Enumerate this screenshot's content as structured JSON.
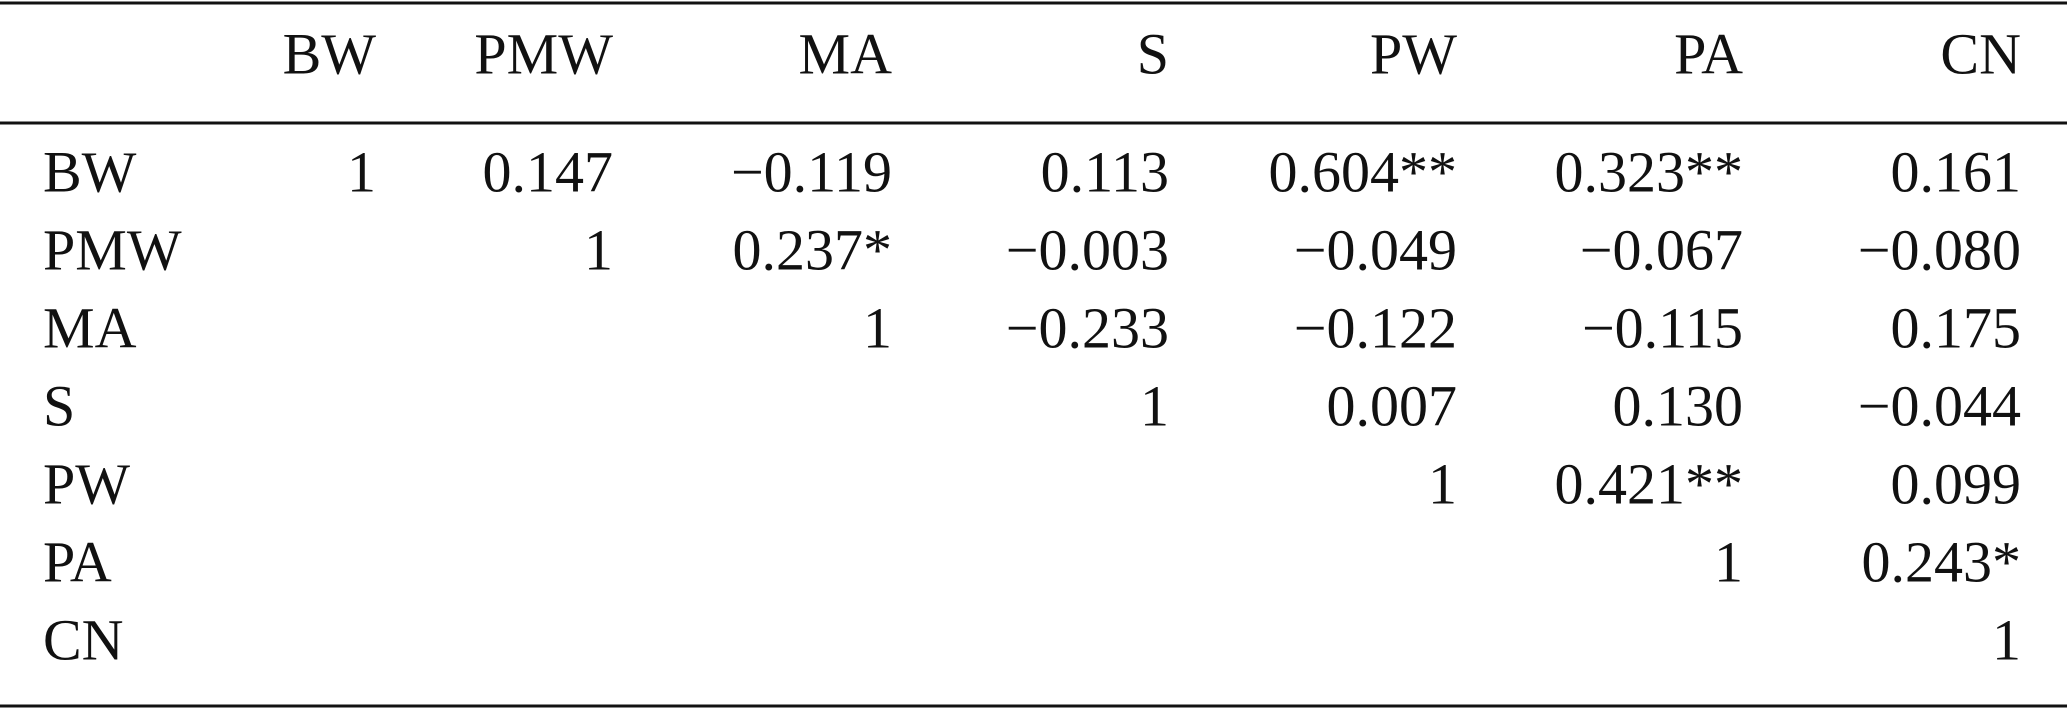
{
  "table": {
    "header": [
      "BW",
      "PMW",
      "MA",
      "S",
      "PW",
      "PA",
      "CN"
    ],
    "rows": [
      {
        "label": "BW",
        "cells": [
          "1",
          "0.147",
          "−0.119",
          "0.113",
          "0.604**",
          "0.323**",
          "0.161"
        ]
      },
      {
        "label": "PMW",
        "cells": [
          null,
          "1",
          "0.237*",
          "−0.003",
          "−0.049",
          "−0.067",
          "−0.080"
        ]
      },
      {
        "label": "MA",
        "cells": [
          null,
          null,
          "1",
          "−0.233",
          "−0.122",
          "−0.115",
          "0.175"
        ]
      },
      {
        "label": "S",
        "cells": [
          null,
          null,
          null,
          "1",
          "0.007",
          "0.130",
          "−0.044"
        ]
      },
      {
        "label": "PW",
        "cells": [
          null,
          null,
          null,
          null,
          "1",
          "0.421**",
          "0.099"
        ]
      },
      {
        "label": "PA",
        "cells": [
          null,
          null,
          null,
          null,
          null,
          "1",
          "0.243*"
        ]
      },
      {
        "label": "CN",
        "cells": [
          null,
          null,
          null,
          null,
          null,
          null,
          "1"
        ]
      }
    ]
  }
}
